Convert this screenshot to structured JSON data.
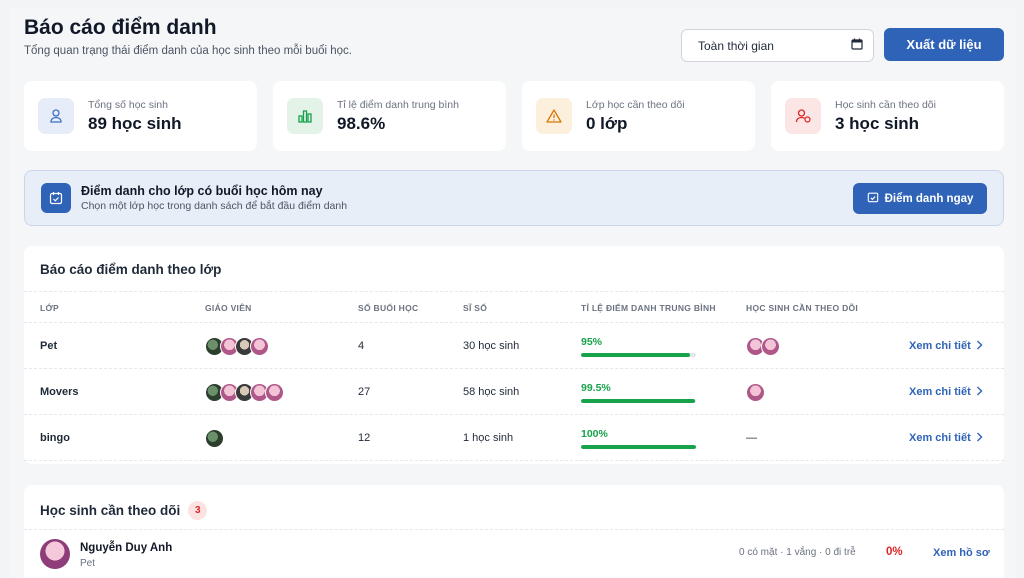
{
  "header": {
    "title": "Báo cáo điểm danh",
    "subtitle": "Tổng quan trạng thái điểm danh của học sinh theo mỗi buổi học."
  },
  "filters": {
    "date_range": "Toàn thời gian",
    "export_label": "Xuất dữ liệu"
  },
  "stats": [
    {
      "label": "Tổng số học sinh",
      "value": "89 học sinh",
      "icon": "user-icon",
      "color": "#3b6fc4",
      "bg": "#e6edf8"
    },
    {
      "label": "Tỉ lệ điểm danh trung bình",
      "value": "98.6%",
      "icon": "bar-chart-icon",
      "color": "#16a34a",
      "bg": "#e3f3e8"
    },
    {
      "label": "Lớp học cần theo dõi",
      "value": "0 lớp",
      "icon": "warning-icon",
      "color": "#d97706",
      "bg": "#fcefdc"
    },
    {
      "label": "Học sinh cần theo dõi",
      "value": "3 học sinh",
      "icon": "user-alert-icon",
      "color": "#dc2626",
      "bg": "#fce5e5"
    }
  ],
  "banner": {
    "title": "Điểm danh cho lớp có buổi học hôm nay",
    "subtitle": "Chọn một lớp học trong danh sách để bắt đầu điểm danh",
    "button_label": "Điểm danh ngay"
  },
  "report": {
    "title": "Báo cáo điểm danh theo lớp",
    "columns": [
      "Lớp",
      "Giáo viên",
      "Số buổi học",
      "Sĩ số",
      "Tỉ lệ điểm danh trung bình",
      "Học sinh cần theo dõi"
    ],
    "rows": [
      {
        "class": "Pet",
        "teachers": 4,
        "sessions": "4",
        "size": "30 học sinh",
        "rate": "95%",
        "rate_value": 95,
        "watch": 2,
        "watch_text": "",
        "link": "Xem chi tiết"
      },
      {
        "class": "Movers",
        "teachers": 5,
        "sessions": "27",
        "size": "58 học sinh",
        "rate": "99.5%",
        "rate_value": 99.5,
        "watch": 1,
        "watch_text": "",
        "link": "Xem chi tiết"
      },
      {
        "class": "bingo",
        "teachers": 1,
        "sessions": "12",
        "size": "1 học sinh",
        "rate": "100%",
        "rate_value": 100,
        "watch": 0,
        "watch_text": "—",
        "link": "Xem chi tiết"
      }
    ]
  },
  "watchlist": {
    "title": "Học sinh cần theo dõi",
    "count": "3",
    "students": [
      {
        "name": "Nguyễn Duy Anh",
        "class": "Pet",
        "stats": "0 có mặt · 1 vắng · 0 đi trễ",
        "percent": "0%",
        "link": "Xem hồ sơ"
      }
    ]
  }
}
